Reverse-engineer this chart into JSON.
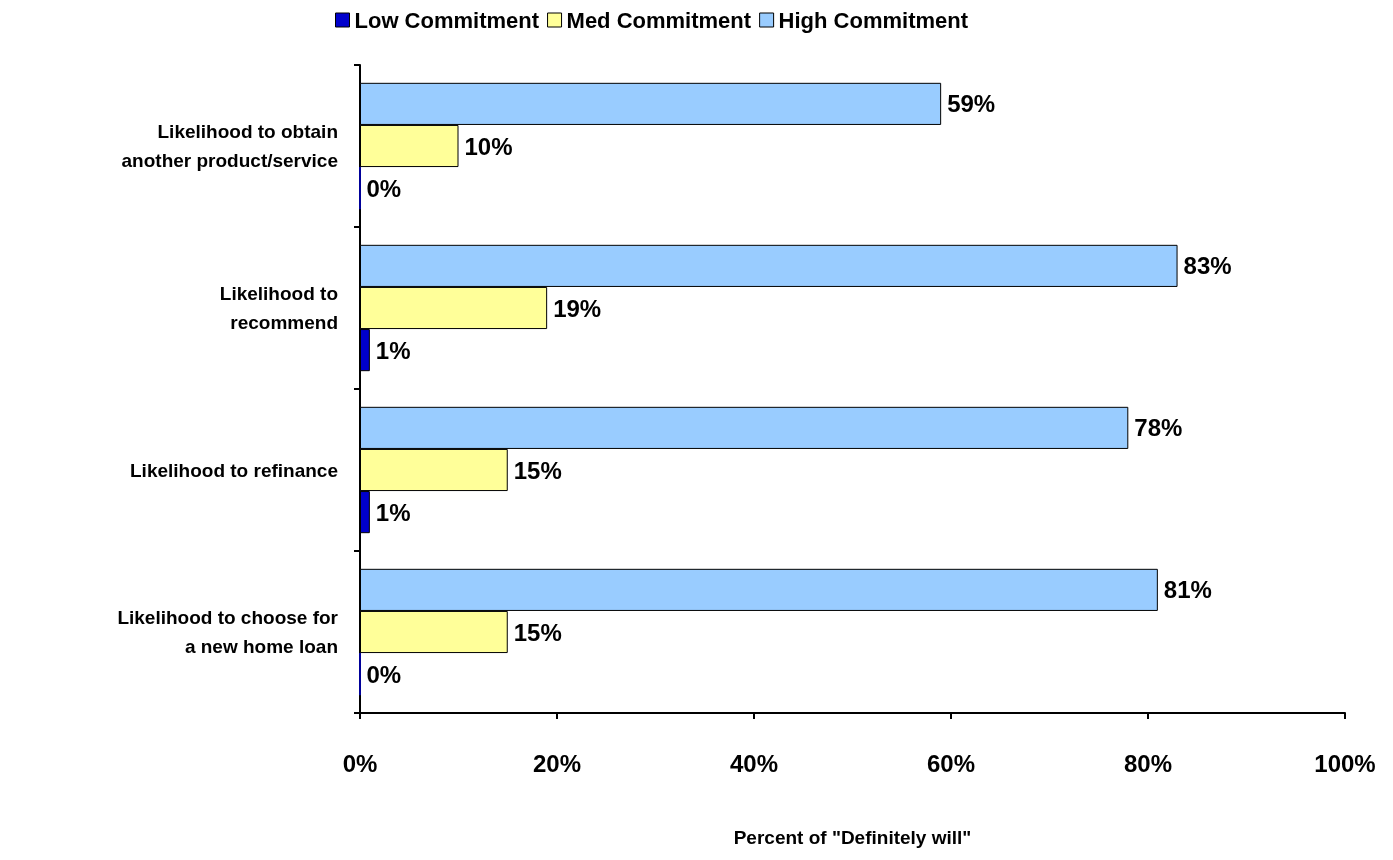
{
  "chart_data": {
    "type": "bar",
    "orientation": "horizontal",
    "xlabel": "Percent of \"Definitely will\"",
    "categories": [
      "Likelihood to obtain\nanother product/service",
      "Likelihood to\nrecommend",
      "Likelihood to refinance",
      "Likelihood to choose for\na new home loan"
    ],
    "series": [
      {
        "name": "Low Commitment",
        "color": "#0000cc",
        "values": [
          0,
          1,
          1,
          0
        ],
        "value_labels": [
          "0%",
          "1%",
          "1%",
          "0%"
        ]
      },
      {
        "name": "Med Commitment",
        "color": "#ffff99",
        "values": [
          10,
          19,
          15,
          15
        ],
        "value_labels": [
          "10%",
          "19%",
          "15%",
          "15%"
        ]
      },
      {
        "name": "High Commitment",
        "color": "#99ccff",
        "values": [
          59,
          83,
          78,
          81
        ],
        "value_labels": [
          "59%",
          "83%",
          "78%",
          "81%"
        ]
      }
    ],
    "xlim": [
      0,
      100
    ],
    "xticks": [
      {
        "value": 0,
        "label": "0%"
      },
      {
        "value": 20,
        "label": "20%"
      },
      {
        "value": 40,
        "label": "40%"
      },
      {
        "value": 60,
        "label": "60%"
      },
      {
        "value": 80,
        "label": "80%"
      },
      {
        "value": 100,
        "label": "100%"
      }
    ],
    "grid": false,
    "legend": "top"
  }
}
